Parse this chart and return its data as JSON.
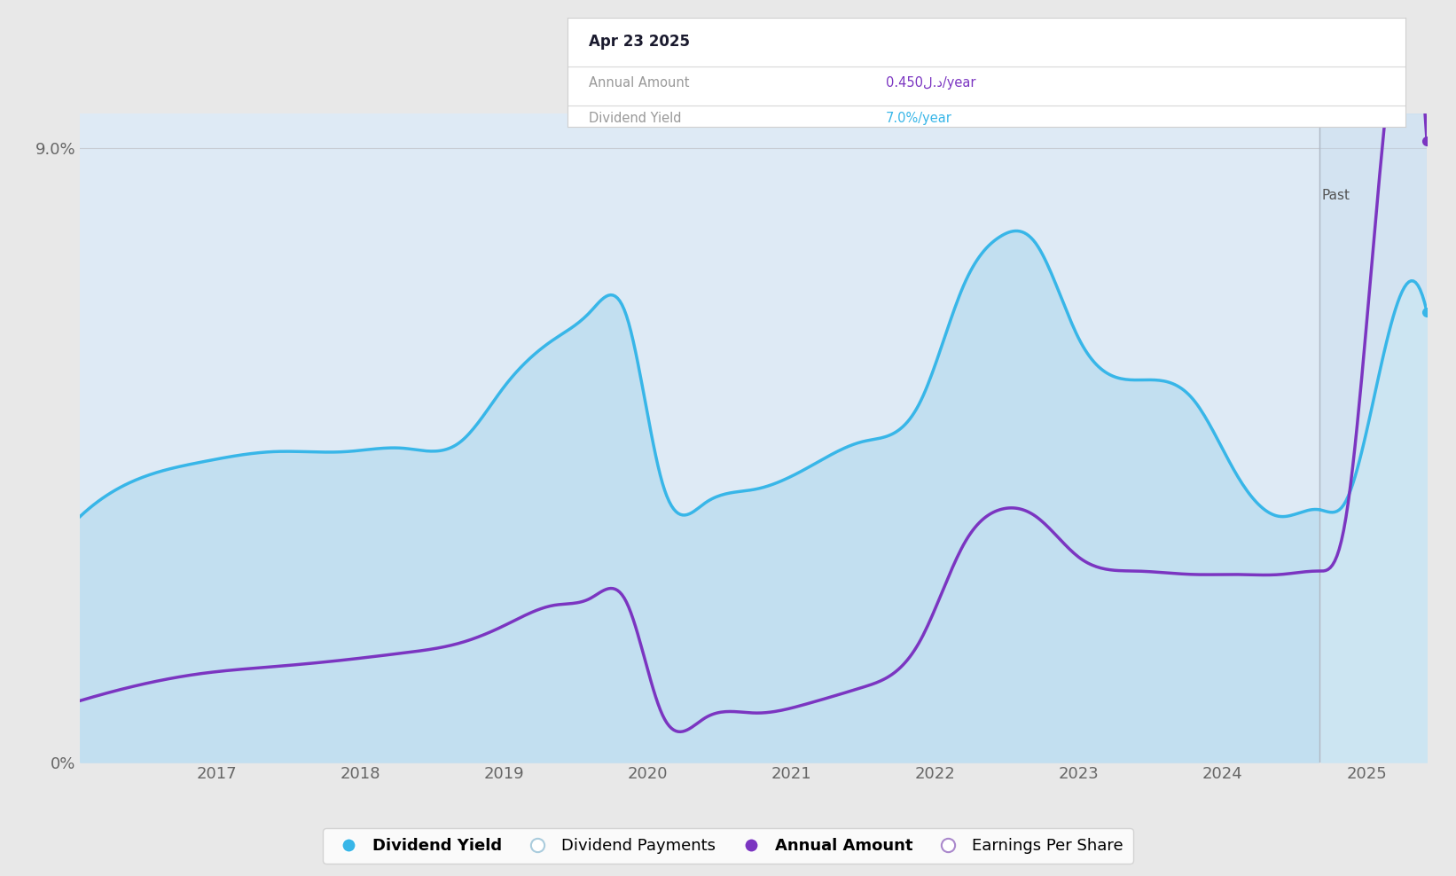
{
  "bg_color": "#e8e8e8",
  "plot_bg_color": "#deeaf5",
  "tooltip_title": "Apr 23 2025",
  "tooltip_annual_amount": "0.450ل.د/year",
  "tooltip_dividend_yield": "7.0%/year",
  "past_label": "Past",
  "x_ticks": [
    2017,
    2018,
    2019,
    2020,
    2021,
    2022,
    2023,
    2024,
    2025
  ],
  "dividend_yield_color": "#38b6e8",
  "annual_amount_color": "#7b35c1",
  "future_start": 2024.67,
  "xlim": [
    2016.05,
    2025.42
  ],
  "ylim": [
    0,
    9.5
  ],
  "div_yield_data_x": [
    2016.05,
    2016.4,
    2016.9,
    2017.4,
    2017.9,
    2018.3,
    2018.7,
    2019.0,
    2019.35,
    2019.6,
    2019.85,
    2020.1,
    2020.4,
    2020.75,
    2021.1,
    2021.5,
    2021.9,
    2022.2,
    2022.45,
    2022.7,
    2023.0,
    2023.4,
    2023.8,
    2024.1,
    2024.4,
    2024.67,
    2024.85,
    2025.1,
    2025.42
  ],
  "div_yield_data_y": [
    3.6,
    4.1,
    4.4,
    4.55,
    4.55,
    4.6,
    4.7,
    5.5,
    6.2,
    6.6,
    6.55,
    4.1,
    3.8,
    4.0,
    4.3,
    4.7,
    5.3,
    7.0,
    7.7,
    7.6,
    6.2,
    5.6,
    5.3,
    4.2,
    3.6,
    3.7,
    3.8,
    5.8,
    6.6
  ],
  "annual_amount_data_x": [
    2016.05,
    2016.4,
    2016.9,
    2017.4,
    2017.9,
    2018.3,
    2018.7,
    2019.0,
    2019.35,
    2019.6,
    2019.85,
    2020.1,
    2020.4,
    2020.75,
    2021.1,
    2021.5,
    2021.9,
    2022.2,
    2022.45,
    2022.7,
    2023.0,
    2023.4,
    2023.8,
    2024.1,
    2024.4,
    2024.67,
    2024.85,
    2025.1,
    2025.42
  ],
  "annual_amount_data_y": [
    0.9,
    1.1,
    1.3,
    1.4,
    1.5,
    1.6,
    1.75,
    2.0,
    2.3,
    2.4,
    2.35,
    0.7,
    0.65,
    0.72,
    0.85,
    1.1,
    1.8,
    3.2,
    3.7,
    3.6,
    3.0,
    2.8,
    2.75,
    2.75,
    2.75,
    2.8,
    3.5,
    8.8,
    9.1
  ]
}
